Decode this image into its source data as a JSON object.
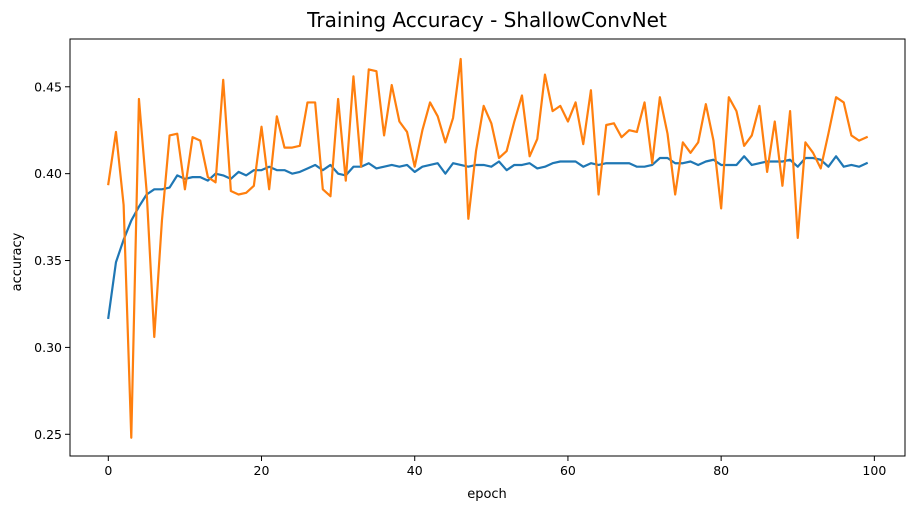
{
  "chart_data": {
    "type": "line",
    "title": "Training Accuracy - ShallowConvNet",
    "xlabel": "epoch",
    "ylabel": "accuracy",
    "xlim": [
      -5,
      104
    ],
    "ylim": [
      0.2375,
      0.4775
    ],
    "xticks": [
      0,
      20,
      40,
      60,
      80,
      100
    ],
    "yticks": [
      0.25,
      0.3,
      0.35,
      0.4,
      0.45
    ],
    "ytick_labels": [
      "0.25",
      "0.30",
      "0.35",
      "0.40",
      "0.45"
    ],
    "grid": false,
    "legend": false,
    "x": [
      0,
      1,
      2,
      3,
      4,
      5,
      6,
      7,
      8,
      9,
      10,
      11,
      12,
      13,
      14,
      15,
      16,
      17,
      18,
      19,
      20,
      21,
      22,
      23,
      24,
      25,
      26,
      27,
      28,
      29,
      30,
      31,
      32,
      33,
      34,
      35,
      36,
      37,
      38,
      39,
      40,
      41,
      42,
      43,
      44,
      45,
      46,
      47,
      48,
      49,
      50,
      51,
      52,
      53,
      54,
      55,
      56,
      57,
      58,
      59,
      60,
      61,
      62,
      63,
      64,
      65,
      66,
      67,
      68,
      69,
      70,
      71,
      72,
      73,
      74,
      75,
      76,
      77,
      78,
      79,
      80,
      81,
      82,
      83,
      84,
      85,
      86,
      87,
      88,
      89,
      90,
      91,
      92,
      93,
      94,
      95,
      96,
      97,
      98,
      99
    ],
    "series": [
      {
        "color": "#1f77b4",
        "values": [
          0.317,
          0.349,
          0.362,
          0.373,
          0.381,
          0.388,
          0.391,
          0.391,
          0.392,
          0.399,
          0.397,
          0.398,
          0.398,
          0.396,
          0.4,
          0.399,
          0.397,
          0.401,
          0.399,
          0.402,
          0.402,
          0.404,
          0.402,
          0.402,
          0.4,
          0.401,
          0.403,
          0.405,
          0.402,
          0.405,
          0.4,
          0.399,
          0.404,
          0.404,
          0.406,
          0.403,
          0.404,
          0.405,
          0.404,
          0.405,
          0.401,
          0.404,
          0.405,
          0.406,
          0.4,
          0.406,
          0.405,
          0.404,
          0.405,
          0.405,
          0.404,
          0.407,
          0.402,
          0.405,
          0.405,
          0.406,
          0.403,
          0.404,
          0.406,
          0.407,
          0.407,
          0.407,
          0.404,
          0.406,
          0.405,
          0.406,
          0.406,
          0.406,
          0.406,
          0.404,
          0.404,
          0.405,
          0.409,
          0.409,
          0.406,
          0.406,
          0.407,
          0.405,
          0.407,
          0.408,
          0.405,
          0.405,
          0.405,
          0.41,
          0.405,
          0.406,
          0.407,
          0.407,
          0.407,
          0.408,
          0.404,
          0.409,
          0.409,
          0.408,
          0.404,
          0.41,
          0.404,
          0.405,
          0.404,
          0.406
        ]
      },
      {
        "color": "#ff7f0e",
        "values": [
          0.394,
          0.424,
          0.382,
          0.248,
          0.443,
          0.39,
          0.306,
          0.373,
          0.422,
          0.423,
          0.391,
          0.421,
          0.419,
          0.398,
          0.395,
          0.454,
          0.39,
          0.388,
          0.389,
          0.393,
          0.427,
          0.391,
          0.433,
          0.415,
          0.415,
          0.416,
          0.441,
          0.441,
          0.391,
          0.387,
          0.443,
          0.396,
          0.456,
          0.404,
          0.46,
          0.459,
          0.422,
          0.451,
          0.43,
          0.424,
          0.404,
          0.425,
          0.441,
          0.433,
          0.418,
          0.432,
          0.466,
          0.374,
          0.413,
          0.439,
          0.429,
          0.409,
          0.413,
          0.43,
          0.445,
          0.41,
          0.42,
          0.457,
          0.436,
          0.439,
          0.43,
          0.441,
          0.417,
          0.448,
          0.388,
          0.428,
          0.429,
          0.421,
          0.425,
          0.424,
          0.441,
          0.406,
          0.444,
          0.423,
          0.388,
          0.418,
          0.412,
          0.418,
          0.44,
          0.419,
          0.38,
          0.444,
          0.436,
          0.416,
          0.422,
          0.439,
          0.401,
          0.43,
          0.393,
          0.436,
          0.363,
          0.418,
          0.412,
          0.403,
          0.423,
          0.444,
          0.441,
          0.422,
          0.419,
          0.421
        ]
      }
    ]
  }
}
